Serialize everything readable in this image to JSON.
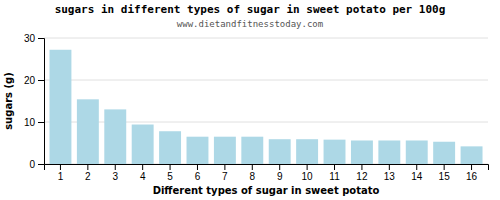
{
  "chart_data": {
    "type": "bar",
    "title": "sugars in different types of sugar in sweet potato per 100g",
    "subtitle": "www.dietandfitnesstoday.com",
    "xlabel": "Different types of sugar in sweet potato",
    "ylabel": "sugars (g)",
    "categories": [
      1,
      2,
      3,
      4,
      5,
      6,
      7,
      8,
      9,
      10,
      11,
      12,
      13,
      14,
      15,
      16
    ],
    "values": [
      27.2,
      15.4,
      13.0,
      9.4,
      7.8,
      6.5,
      6.5,
      6.5,
      5.9,
      5.9,
      5.8,
      5.6,
      5.6,
      5.6,
      5.3,
      4.2
    ],
    "color": "#add8e6",
    "ylim": [
      0,
      30
    ],
    "yticks": [
      0,
      10,
      20,
      30
    ],
    "grid": true
  }
}
